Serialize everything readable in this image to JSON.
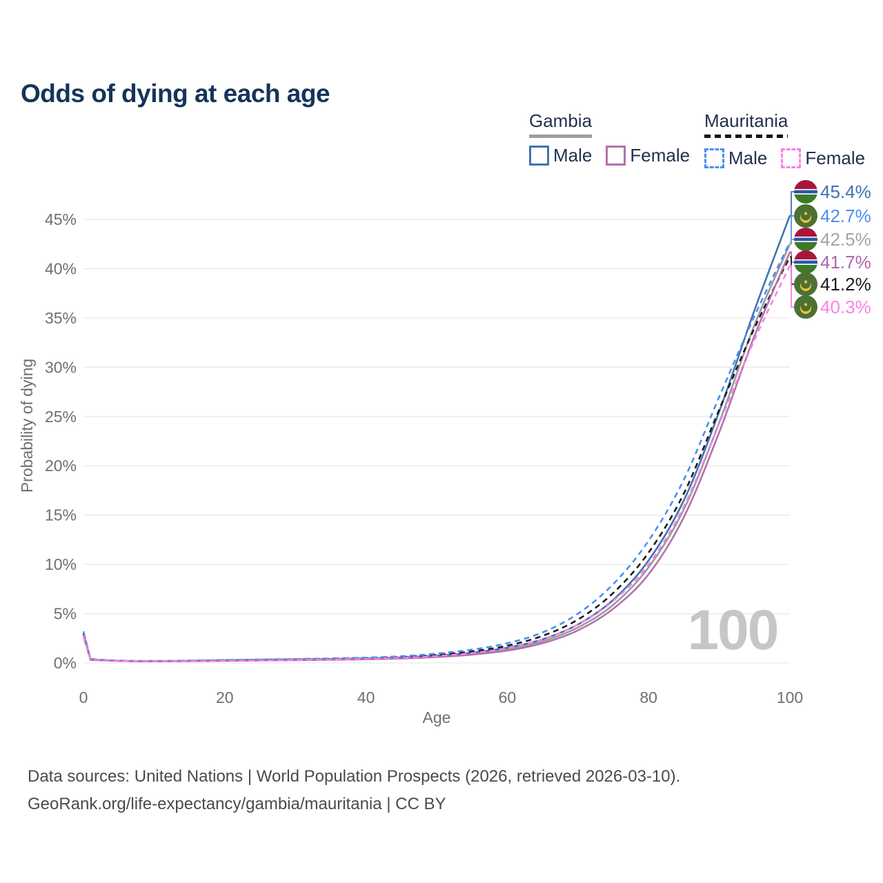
{
  "title": "Odds of dying at each age",
  "legend": {
    "groups": [
      {
        "country": "Gambia",
        "underline_style": "solid",
        "underline_color": "#9e9e9e",
        "items": [
          {
            "label": "Male",
            "series": "gambia-male"
          },
          {
            "label": "Female",
            "series": "gambia-female"
          }
        ]
      },
      {
        "country": "Mauritania",
        "underline_style": "dashed",
        "underline_color": "#151515",
        "items": [
          {
            "label": "Male",
            "series": "mauritania-male"
          },
          {
            "label": "Female",
            "series": "mauritania-female"
          }
        ]
      }
    ]
  },
  "watermark": "100",
  "chart_data": {
    "type": "line",
    "title": "Odds of dying at each age",
    "xlabel": "Age",
    "ylabel": "Probability of dying",
    "x_ticks": [
      0,
      20,
      40,
      60,
      80,
      100
    ],
    "y_ticks_pct": [
      0,
      5,
      10,
      15,
      20,
      25,
      30,
      35,
      40,
      45
    ],
    "y_tick_suffix": "%",
    "xlim": [
      0,
      100
    ],
    "ylim_pct": [
      0,
      47
    ],
    "grid": "horizontal",
    "legend_position": "top-right",
    "ages": [
      0,
      1,
      5,
      10,
      15,
      20,
      25,
      30,
      35,
      40,
      45,
      50,
      55,
      60,
      65,
      70,
      75,
      80,
      85,
      90,
      95,
      100
    ],
    "series": [
      {
        "key": "gambia-both",
        "country": "Gambia",
        "name": "Gambia",
        "color": "#9a9a9a",
        "dash": false,
        "values_pct": [
          2.9,
          0.33,
          0.21,
          0.17,
          0.2,
          0.25,
          0.29,
          0.33,
          0.37,
          0.42,
          0.51,
          0.68,
          0.95,
          1.4,
          2.2,
          3.6,
          5.9,
          9.7,
          15.6,
          24.4,
          34.3,
          42.5
        ]
      },
      {
        "key": "gambia-male",
        "country": "Gambia",
        "name": "Male",
        "color": "#4173ad",
        "dash": false,
        "values_pct": [
          3.0,
          0.35,
          0.22,
          0.18,
          0.22,
          0.28,
          0.32,
          0.36,
          0.4,
          0.46,
          0.56,
          0.75,
          1.05,
          1.55,
          2.4,
          3.9,
          6.4,
          10.4,
          16.5,
          25.5,
          35.8,
          45.4
        ]
      },
      {
        "key": "mauritania-both",
        "country": "Mauritania",
        "name": "Mauritania",
        "color": "#1b1b1b",
        "dash": true,
        "values_pct": [
          3.0,
          0.37,
          0.22,
          0.18,
          0.22,
          0.27,
          0.31,
          0.36,
          0.41,
          0.48,
          0.6,
          0.82,
          1.17,
          1.75,
          2.75,
          4.4,
          7.1,
          11.2,
          17.2,
          25.7,
          34.0,
          41.2
        ]
      },
      {
        "key": "mauritania-male",
        "country": "Mauritania",
        "name": "Male",
        "color": "#4b8ef2",
        "dash": true,
        "values_pct": [
          3.2,
          0.4,
          0.24,
          0.2,
          0.24,
          0.3,
          0.35,
          0.4,
          0.46,
          0.54,
          0.68,
          0.95,
          1.35,
          2.0,
          3.1,
          5.0,
          8.0,
          12.4,
          18.6,
          27.0,
          35.2,
          42.7
        ]
      },
      {
        "key": "gambia-female",
        "country": "Gambia",
        "name": "Female",
        "color": "#b172ae",
        "dash": false,
        "values_pct": [
          2.7,
          0.3,
          0.2,
          0.16,
          0.18,
          0.22,
          0.25,
          0.28,
          0.32,
          0.37,
          0.45,
          0.6,
          0.85,
          1.25,
          2.0,
          3.3,
          5.5,
          9.0,
          14.8,
          23.4,
          33.2,
          41.7
        ]
      },
      {
        "key": "mauritania-female",
        "country": "Mauritania",
        "name": "Female",
        "color": "#fa80e8",
        "dash": true,
        "values_pct": [
          2.8,
          0.34,
          0.21,
          0.17,
          0.19,
          0.24,
          0.27,
          0.31,
          0.36,
          0.42,
          0.52,
          0.7,
          1.0,
          1.5,
          2.4,
          3.9,
          6.3,
          10.0,
          15.9,
          24.3,
          32.8,
          40.3
        ]
      }
    ],
    "end_labels": [
      {
        "series": "gambia-male",
        "text": "45.4%",
        "color": "#4173ad",
        "flag": "gambia"
      },
      {
        "series": "mauritania-male",
        "text": "42.7%",
        "color": "#4b8ef2",
        "flag": "mauritania"
      },
      {
        "series": "gambia-both",
        "text": "42.5%",
        "color": "#a3a3a3",
        "flag": "gambia"
      },
      {
        "series": "gambia-female",
        "text": "41.7%",
        "color": "#b065ae",
        "flag": "gambia"
      },
      {
        "series": "mauritania-both",
        "text": "41.2%",
        "color": "#1b1b1b",
        "flag": "mauritania"
      },
      {
        "series": "mauritania-female",
        "text": "40.3%",
        "color": "#fa80e8",
        "flag": "mauritania"
      }
    ],
    "flag_colors": {
      "gambia": {
        "red": "#a8173a",
        "blue": "#2a57a8",
        "green": "#3d7a2a",
        "white": "#ffffff"
      },
      "mauritania": {
        "green": "#4d7133",
        "gold": "#eec43d"
      }
    }
  },
  "footer": {
    "line1": "Data sources: United Nations | World Population Prospects (2026, retrieved 2026-03-10).",
    "line2": "GeoRank.org/life-expectancy/gambia/mauritania | CC BY"
  }
}
